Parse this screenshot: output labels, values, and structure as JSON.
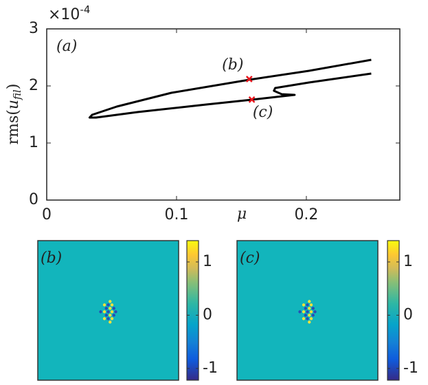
{
  "chart_data": [
    {
      "type": "line",
      "xlabel": "μ",
      "ylabel_parts": [
        "rms(",
        "u",
        "fil",
        ")"
      ],
      "y_exponent": [
        "×10",
        "-4"
      ],
      "panel_label": "(a)",
      "xlim": [
        0,
        0.272
      ],
      "xticks": [
        0,
        0.1,
        0.2
      ],
      "ylim": [
        0,
        3
      ],
      "yticks": [
        0,
        1,
        2,
        3
      ],
      "series": [
        {
          "color": "#000000",
          "x": [
            0.25,
            0.202,
            0.156,
            0.096,
            0.054,
            0.035,
            0.033,
            0.038,
            0.07,
            0.123,
            0.158,
            0.191,
            0.181,
            0.175,
            0.176,
            0.202,
            0.25
          ],
          "values": [
            2.458,
            2.265,
            2.108,
            1.88,
            1.639,
            1.494,
            1.446,
            1.446,
            1.542,
            1.675,
            1.759,
            1.843,
            1.855,
            1.916,
            1.964,
            2.06,
            2.217
          ]
        }
      ],
      "markers": {
        "color": "#e8141b",
        "labels": [
          "(b)",
          "(c)"
        ],
        "x": [
          0.156,
          0.158
        ],
        "values": [
          2.12,
          1.76
        ]
      }
    },
    {
      "type": "heatmap",
      "panel_label": "(b)",
      "clim": [
        -1.22,
        1.4
      ],
      "cticks": [
        -1,
        0,
        1
      ]
    },
    {
      "type": "heatmap",
      "panel_label": "(c)",
      "clim": [
        -1.22,
        1.4
      ],
      "cticks": [
        -1,
        0,
        1
      ]
    }
  ]
}
